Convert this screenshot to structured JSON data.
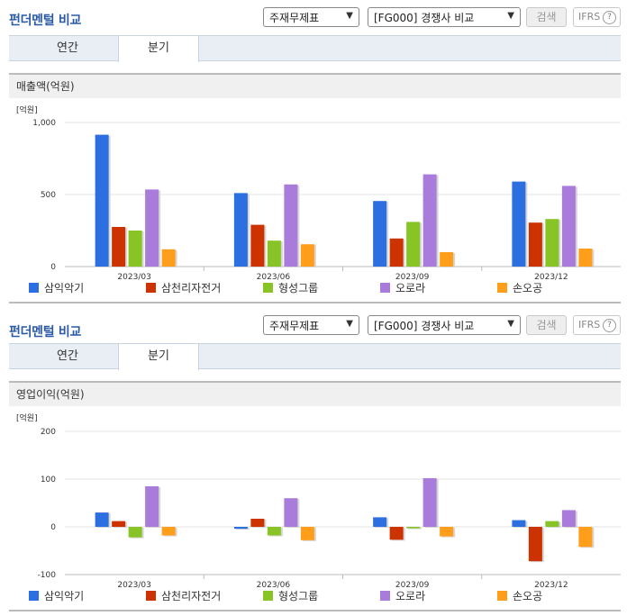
{
  "panels": [
    {
      "header_title": "펀더멘털 비교",
      "select_statement": "주재무제표",
      "select_compare": "[FG000] 경쟁사 비교",
      "search_label": "검색",
      "ifrs_label": "IFRS",
      "help_glyph": "?",
      "tabs": [
        {
          "label": "연간"
        },
        {
          "label": "분기"
        }
      ],
      "active_tab": 1,
      "chart_title": "매출액(억원)"
    },
    {
      "header_title": "펀더멘털 비교",
      "select_statement": "주재무제표",
      "select_compare": "[FG000] 경쟁사 비교",
      "search_label": "검색",
      "ifrs_label": "IFRS",
      "help_glyph": "?",
      "tabs": [
        {
          "label": "연간"
        },
        {
          "label": "분기"
        }
      ],
      "active_tab": 1,
      "chart_title": "영업이익(억원)"
    }
  ],
  "legend": [
    {
      "name": "삼익악기",
      "color": "#2b6fe0"
    },
    {
      "name": "삼천리자전거",
      "color": "#cc3300"
    },
    {
      "name": "형성그룹",
      "color": "#88c425"
    },
    {
      "name": "오로라",
      "color": "#a97bdb"
    },
    {
      "name": "손오공",
      "color": "#ff9e1b"
    }
  ],
  "chart_data": [
    {
      "type": "bar",
      "unit_label": "[억원]",
      "categories": [
        "2023/03",
        "2023/06",
        "2023/09",
        "2023/12"
      ],
      "ylim": [
        0,
        1000
      ],
      "yticks": [
        0,
        500,
        1000
      ],
      "ytick_labels": [
        "0",
        "500",
        "1,000"
      ],
      "grid": true,
      "legend_position": "bottom",
      "series": [
        {
          "name": "삼익악기",
          "values": [
            915,
            510,
            455,
            590
          ]
        },
        {
          "name": "삼천리자전거",
          "values": [
            275,
            290,
            195,
            305
          ]
        },
        {
          "name": "형성그룹",
          "values": [
            250,
            180,
            310,
            330
          ]
        },
        {
          "name": "오로라",
          "values": [
            535,
            570,
            640,
            560
          ]
        },
        {
          "name": "손오공",
          "values": [
            120,
            155,
            100,
            125
          ]
        }
      ]
    },
    {
      "type": "bar",
      "unit_label": "[억원]",
      "categories": [
        "2023/03",
        "2023/06",
        "2023/09",
        "2023/12"
      ],
      "ylim": [
        -100,
        200
      ],
      "yticks": [
        -100,
        0,
        100,
        200
      ],
      "ytick_labels": [
        "-100",
        "0",
        "100",
        "200"
      ],
      "grid": true,
      "legend_position": "bottom",
      "series": [
        {
          "name": "삼익악기",
          "values": [
            30,
            -4,
            20,
            14
          ]
        },
        {
          "name": "삼천리자전거",
          "values": [
            12,
            17,
            -27,
            -72
          ]
        },
        {
          "name": "형성그룹",
          "values": [
            -22,
            -18,
            -3,
            12
          ]
        },
        {
          "name": "오로라",
          "values": [
            85,
            60,
            102,
            35
          ]
        },
        {
          "name": "손오공",
          "values": [
            -18,
            -28,
            -20,
            -42
          ]
        }
      ]
    }
  ]
}
